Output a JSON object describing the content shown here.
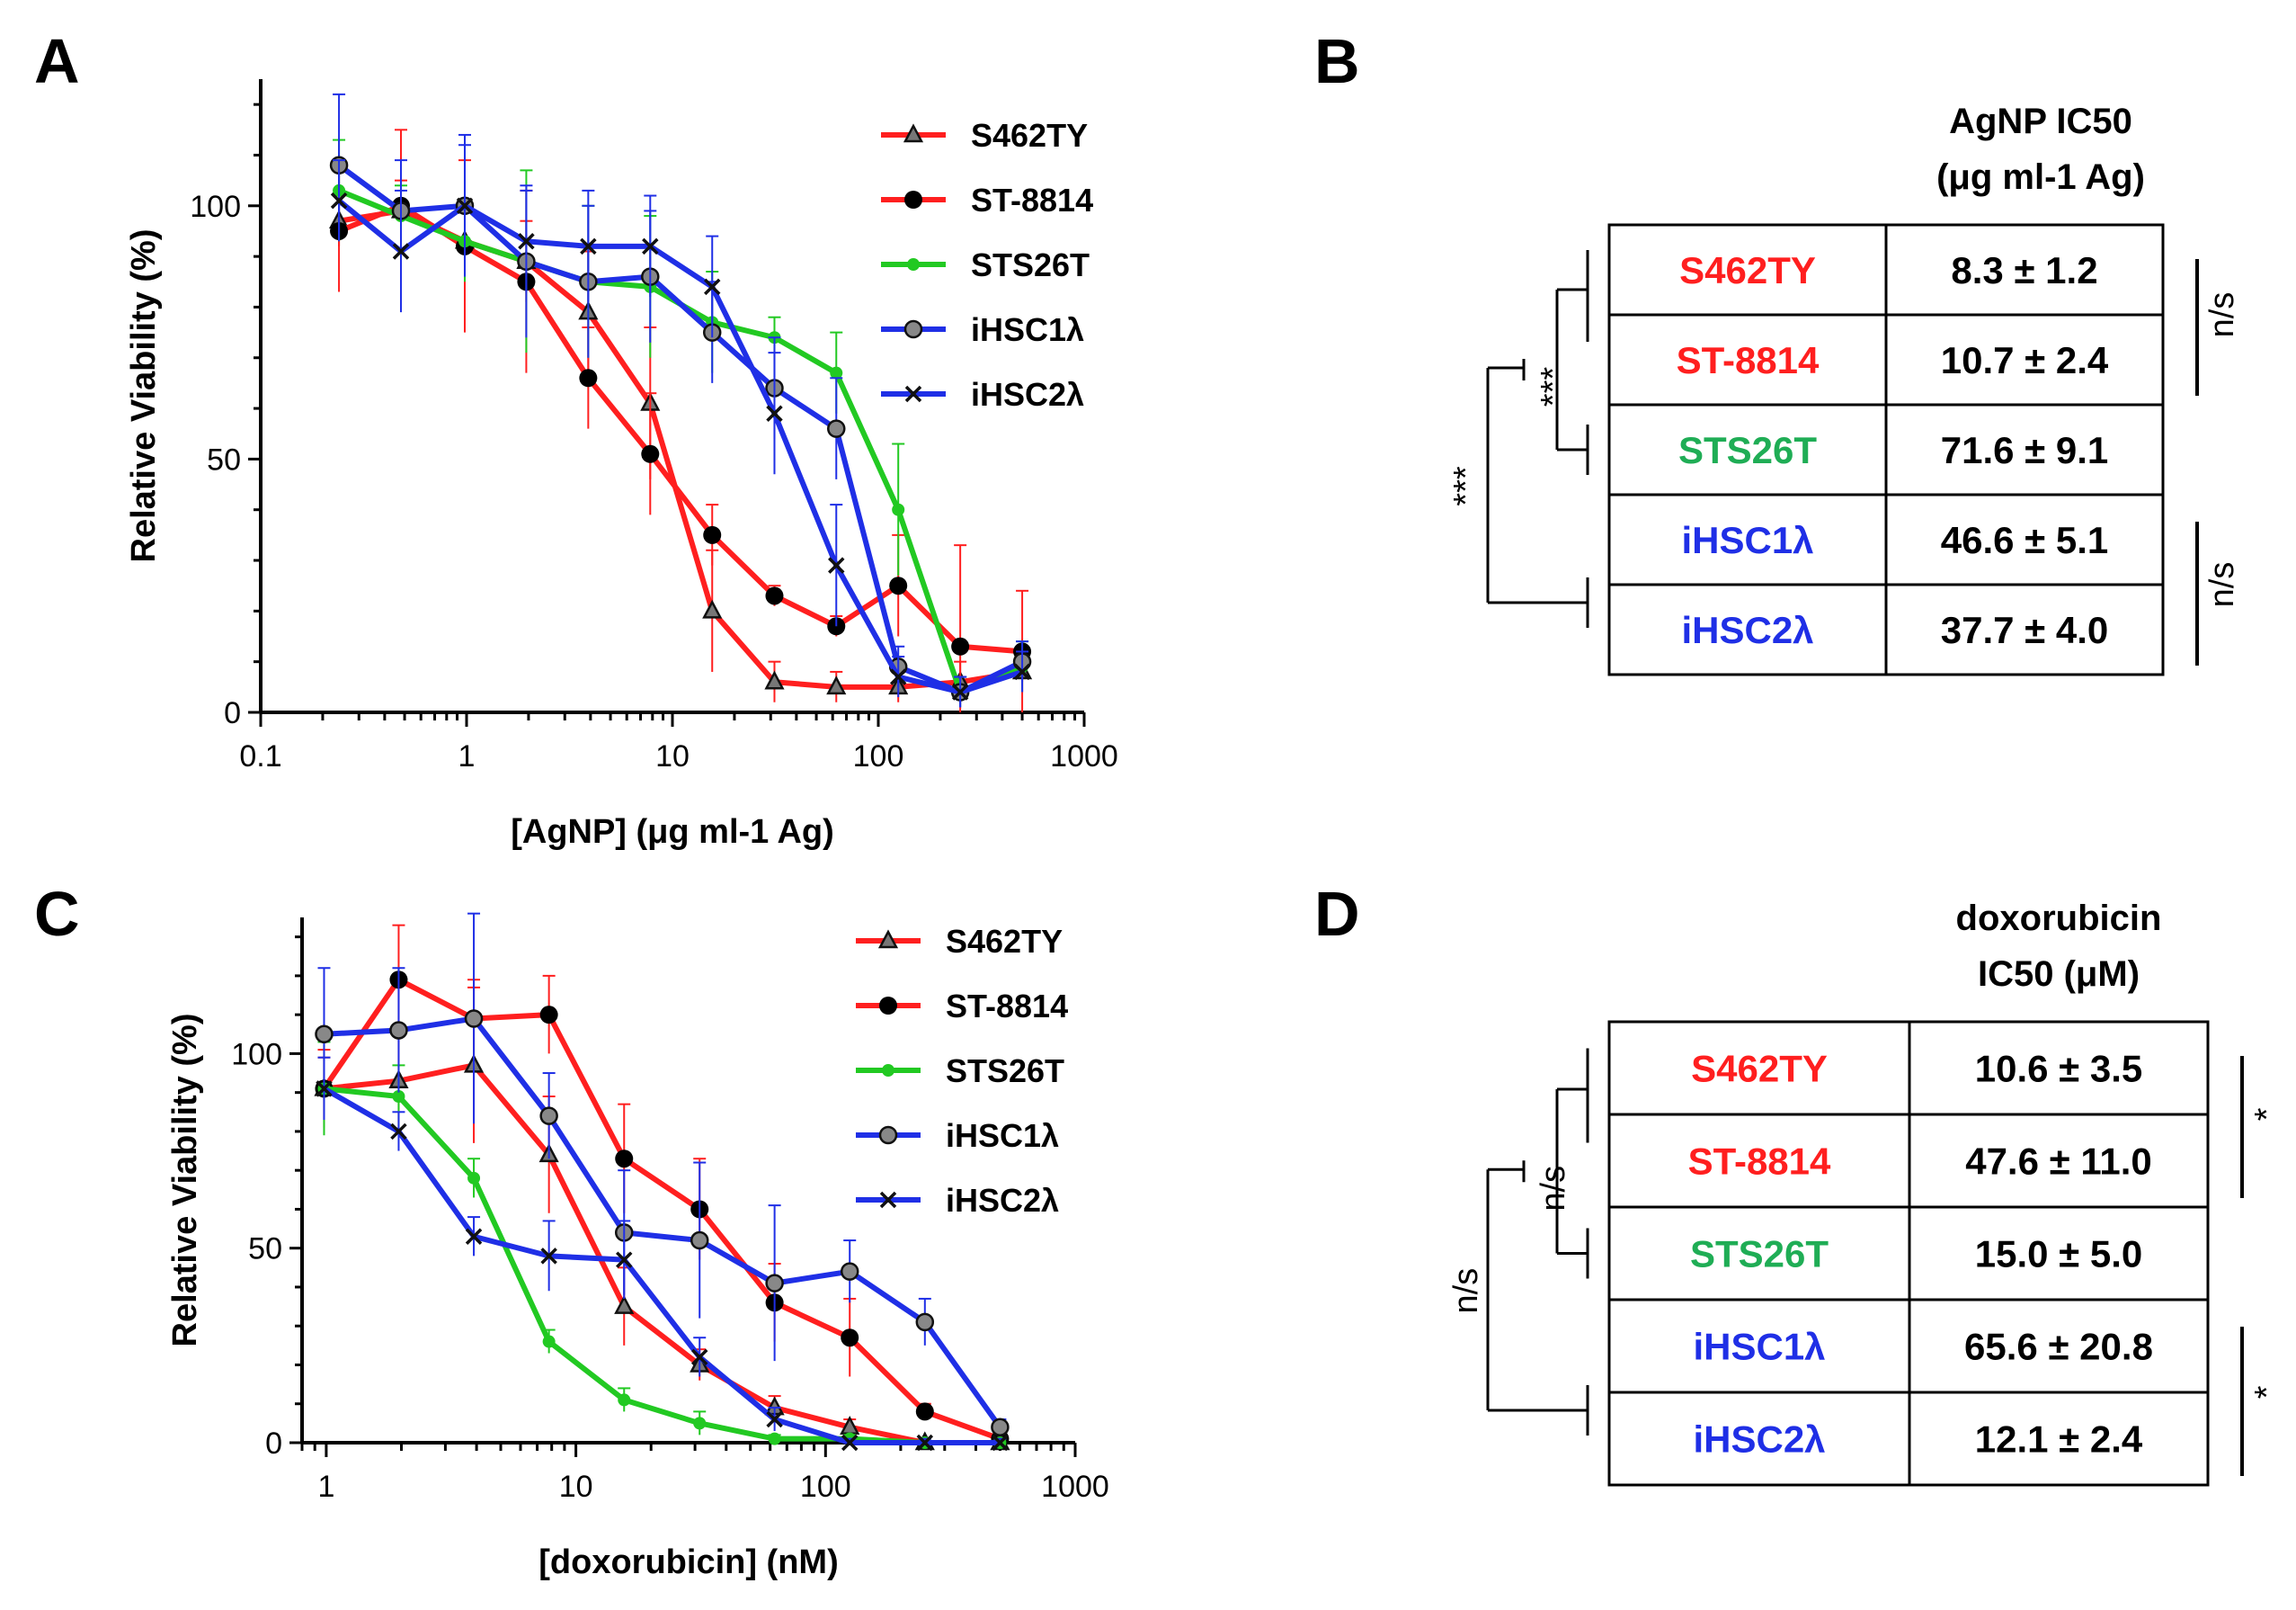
{
  "colors": {
    "S462TY": "#ff1f1f",
    "ST-8814": "#ff1f1f",
    "STS26T": "#22c922",
    "iHSC1λ": "#1f2fe6",
    "iHSC2λ": "#1f2fe6",
    "STS26T_text": "#1fad55"
  },
  "panels": {
    "A": "A",
    "B": "B",
    "C": "C",
    "D": "D"
  },
  "chart_data": [
    {
      "panel": "A",
      "type": "line",
      "xscale": "log",
      "xlabel": "[AgNP] (μg ml-1 Ag)",
      "ylabel": "Relative Viability (%)",
      "xlim": [
        0.1,
        1000
      ],
      "ylim": [
        0,
        125
      ],
      "xticks": [
        0.1,
        1,
        10,
        100,
        1000
      ],
      "xtick_labels": [
        "0.1",
        "1",
        "10",
        "100",
        "1000"
      ],
      "yticks": [
        0,
        50,
        100
      ],
      "ytick_labels": [
        "0",
        "50",
        "100"
      ],
      "legend_position": "top-right",
      "x": [
        0.24,
        0.48,
        0.98,
        1.95,
        3.9,
        7.8,
        15.6,
        31.3,
        62.5,
        125,
        250,
        500
      ],
      "series": [
        {
          "name": "S462TY",
          "marker": "triangle",
          "values": [
            97,
            99,
            93,
            89,
            79,
            61,
            20,
            6,
            5,
            5,
            6,
            8
          ],
          "errors": [
            5,
            6,
            6,
            8,
            12,
            15,
            12,
            4,
            3,
            3,
            4,
            4
          ]
        },
        {
          "name": "ST-8814",
          "marker": "filled-circle",
          "values": [
            95,
            100,
            92,
            85,
            66,
            51,
            35,
            23,
            17,
            25,
            13,
            12
          ],
          "errors": [
            12,
            15,
            17,
            18,
            10,
            12,
            6,
            2,
            2,
            10,
            20,
            12
          ]
        },
        {
          "name": "STS26T",
          "marker": "filled-dot",
          "values": [
            103,
            98,
            93,
            89,
            85,
            84,
            77,
            74,
            67,
            40,
            4,
            9
          ],
          "errors": [
            10,
            6,
            8,
            18,
            15,
            14,
            10,
            4,
            8,
            13,
            3,
            5
          ]
        },
        {
          "name": "iHSC1λ",
          "marker": "open-circle",
          "values": [
            108,
            99,
            100,
            89,
            85,
            86,
            75,
            64,
            56,
            9,
            4,
            10
          ],
          "errors": [
            14,
            10,
            14,
            15,
            15,
            13,
            10,
            10,
            10,
            4,
            3,
            4
          ]
        },
        {
          "name": "iHSC2λ",
          "marker": "cross",
          "values": [
            101,
            91,
            100,
            93,
            92,
            92,
            84,
            59,
            29,
            7,
            4,
            8
          ],
          "errors": [
            8,
            12,
            12,
            10,
            11,
            10,
            10,
            12,
            12,
            4,
            3,
            4
          ]
        }
      ]
    },
    {
      "panel": "C",
      "type": "line",
      "xscale": "log",
      "xlabel": "[doxorubicin] (nM)",
      "ylabel": "Relative Viability (%)",
      "xlim": [
        0.8,
        1000
      ],
      "ylim": [
        0,
        135
      ],
      "xticks": [
        1,
        10,
        100,
        1000
      ],
      "xtick_labels": [
        "1",
        "10",
        "100",
        "1000"
      ],
      "yticks": [
        0,
        50,
        100
      ],
      "ytick_labels": [
        "0",
        "50",
        "100"
      ],
      "legend_position": "top-right",
      "x": [
        0.98,
        1.95,
        3.9,
        7.8,
        15.6,
        31.3,
        62.5,
        125,
        250,
        500
      ],
      "series": [
        {
          "name": "S462TY",
          "marker": "triangle",
          "values": [
            91,
            93,
            97,
            74,
            35,
            20,
            9,
            4,
            0,
            0
          ],
          "errors": [
            8,
            12,
            20,
            15,
            10,
            4,
            3,
            2,
            1,
            1
          ]
        },
        {
          "name": "ST-8814",
          "marker": "filled-circle",
          "values": [
            91,
            119,
            109,
            110,
            73,
            60,
            36,
            27,
            8,
            1
          ],
          "errors": [
            10,
            14,
            10,
            10,
            14,
            13,
            10,
            10,
            2,
            1
          ]
        },
        {
          "name": "STS26T",
          "marker": "filled-dot",
          "values": [
            91,
            89,
            68,
            26,
            11,
            5,
            1,
            1,
            0,
            0
          ],
          "errors": [
            12,
            8,
            5,
            3,
            3,
            3,
            1,
            1,
            1,
            1
          ]
        },
        {
          "name": "iHSC1λ",
          "marker": "open-circle",
          "values": [
            105,
            106,
            109,
            84,
            54,
            52,
            41,
            44,
            31,
            4
          ],
          "errors": [
            17,
            16,
            27,
            11,
            16,
            20,
            20,
            8,
            6,
            2
          ]
        },
        {
          "name": "iHSC2λ",
          "marker": "cross",
          "values": [
            91,
            80,
            53,
            48,
            47,
            22,
            6,
            0,
            0,
            0
          ],
          "errors": [
            8,
            5,
            5,
            9,
            10,
            5,
            3,
            1,
            1,
            1
          ]
        }
      ]
    },
    {
      "panel": "B",
      "type": "table",
      "title_line1": "AgNP IC50",
      "title_line2": "(μg ml-1 Ag)",
      "rows": [
        {
          "name": "S462TY",
          "value": "8.3 ± 1.2"
        },
        {
          "name": "ST-8814",
          "value": "10.7 ± 2.4"
        },
        {
          "name": "STS26T",
          "value": "71.6 ± 9.1"
        },
        {
          "name": "iHSC1λ",
          "value": "46.6 ± 5.1"
        },
        {
          "name": "iHSC2λ",
          "value": "37.7 ± 4.0"
        }
      ],
      "left_brackets": [
        {
          "label": "***",
          "between": "S462TY/ST-8814 vs STS26T"
        },
        {
          "label": "***",
          "between": "S462TY/ST-8814/STS26T vs iHSC1λ/iHSC2λ"
        }
      ],
      "right_brackets": [
        {
          "label": "n/s",
          "rows": "S462TY-ST-8814"
        },
        {
          "label": "n/s",
          "rows": "iHSC1λ-iHSC2λ"
        }
      ]
    },
    {
      "panel": "D",
      "type": "table",
      "title_line1": "doxorubicin",
      "title_line2": "IC50 (μM)",
      "rows": [
        {
          "name": "S462TY",
          "value": "10.6 ± 3.5"
        },
        {
          "name": "ST-8814",
          "value": "47.6 ± 11.0"
        },
        {
          "name": "STS26T",
          "value": "15.0 ± 5.0"
        },
        {
          "name": "iHSC1λ",
          "value": "65.6 ± 20.8"
        },
        {
          "name": "iHSC2λ",
          "value": "12.1 ± 2.4"
        }
      ],
      "left_brackets": [
        {
          "label": "n/s",
          "between": "S462TY/ST-8814 vs STS26T"
        },
        {
          "label": "n/s",
          "between": "S462TY/ST-8814/STS26T vs iHSC1λ/iHSC2λ"
        }
      ],
      "right_brackets": [
        {
          "label": "*",
          "rows": "S462TY-ST-8814"
        },
        {
          "label": "*",
          "rows": "iHSC1λ-iHSC2λ"
        }
      ]
    }
  ]
}
